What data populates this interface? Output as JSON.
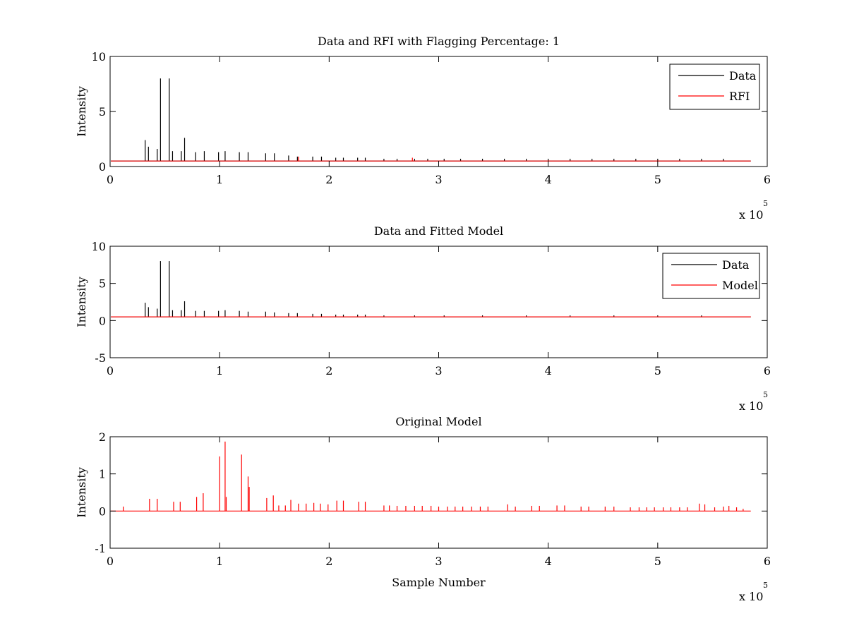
{
  "chart_data": [
    {
      "type": "line",
      "title": "Data and RFI with Flagging Percentage: 1",
      "xlabel": "",
      "ylabel": "Intensity",
      "xlim": [
        0,
        6
      ],
      "ylim": [
        0,
        10
      ],
      "xticks": [
        "0",
        "1",
        "2",
        "3",
        "4",
        "5",
        "6"
      ],
      "yticks": [
        "0",
        "5",
        "10"
      ],
      "x_multiplier": {
        "base": "x 10",
        "exponent": "5"
      },
      "legend_position": "top-right",
      "grid": false,
      "series": [
        {
          "name": "Data",
          "color": "#000000",
          "baseline": 0.5,
          "spikes": [
            {
              "x": 0.32,
              "y": 2.4
            },
            {
              "x": 0.35,
              "y": 1.8
            },
            {
              "x": 0.43,
              "y": 1.6
            },
            {
              "x": 0.46,
              "y": 8.0
            },
            {
              "x": 0.54,
              "y": 8.0
            },
            {
              "x": 0.57,
              "y": 1.4
            },
            {
              "x": 0.65,
              "y": 1.4
            },
            {
              "x": 0.68,
              "y": 2.6
            },
            {
              "x": 0.78,
              "y": 1.3
            },
            {
              "x": 0.86,
              "y": 1.4
            },
            {
              "x": 0.99,
              "y": 1.3
            },
            {
              "x": 1.05,
              "y": 1.4
            },
            {
              "x": 1.18,
              "y": 1.3
            },
            {
              "x": 1.26,
              "y": 1.3
            },
            {
              "x": 1.42,
              "y": 1.2
            },
            {
              "x": 1.5,
              "y": 1.2
            },
            {
              "x": 1.63,
              "y": 1.0
            },
            {
              "x": 1.71,
              "y": 0.9
            },
            {
              "x": 1.85,
              "y": 0.9
            },
            {
              "x": 1.93,
              "y": 0.9
            },
            {
              "x": 2.06,
              "y": 0.8
            },
            {
              "x": 2.13,
              "y": 0.8
            },
            {
              "x": 2.26,
              "y": 0.8
            },
            {
              "x": 2.33,
              "y": 0.8
            },
            {
              "x": 2.5,
              "y": 0.7
            },
            {
              "x": 2.62,
              "y": 0.7
            },
            {
              "x": 2.78,
              "y": 0.7
            },
            {
              "x": 2.9,
              "y": 0.7
            },
            {
              "x": 3.05,
              "y": 0.7
            },
            {
              "x": 3.2,
              "y": 0.7
            },
            {
              "x": 3.4,
              "y": 0.7
            },
            {
              "x": 3.6,
              "y": 0.7
            },
            {
              "x": 3.8,
              "y": 0.7
            },
            {
              "x": 4.0,
              "y": 0.7
            },
            {
              "x": 4.2,
              "y": 0.7
            },
            {
              "x": 4.4,
              "y": 0.7
            },
            {
              "x": 4.6,
              "y": 0.7
            },
            {
              "x": 4.8,
              "y": 0.7
            },
            {
              "x": 5.0,
              "y": 0.7
            },
            {
              "x": 5.2,
              "y": 0.7
            },
            {
              "x": 5.4,
              "y": 0.7
            },
            {
              "x": 5.6,
              "y": 0.7
            }
          ]
        },
        {
          "name": "RFI",
          "color": "#ff0000",
          "baseline": 0.5,
          "spikes": [
            {
              "x": 1.72,
              "y": 0.9
            },
            {
              "x": 2.76,
              "y": 0.8
            }
          ]
        }
      ]
    },
    {
      "type": "line",
      "title": "Data and Fitted Model",
      "xlabel": "",
      "ylabel": "Intensity",
      "xlim": [
        0,
        6
      ],
      "ylim": [
        -5,
        10
      ],
      "xticks": [
        "0",
        "1",
        "2",
        "3",
        "4",
        "5",
        "6"
      ],
      "yticks": [
        "-5",
        "0",
        "5",
        "10"
      ],
      "x_multiplier": {
        "base": "x 10",
        "exponent": "5"
      },
      "legend_position": "top-right",
      "grid": false,
      "series": [
        {
          "name": "Data",
          "color": "#000000",
          "baseline": 0.5,
          "spikes": [
            {
              "x": 0.32,
              "y": 2.4
            },
            {
              "x": 0.35,
              "y": 1.8
            },
            {
              "x": 0.43,
              "y": 1.6
            },
            {
              "x": 0.46,
              "y": 8.0
            },
            {
              "x": 0.54,
              "y": 8.0
            },
            {
              "x": 0.57,
              "y": 1.4
            },
            {
              "x": 0.65,
              "y": 1.4
            },
            {
              "x": 0.68,
              "y": 2.6
            },
            {
              "x": 0.78,
              "y": 1.3
            },
            {
              "x": 0.86,
              "y": 1.3
            },
            {
              "x": 0.99,
              "y": 1.3
            },
            {
              "x": 1.05,
              "y": 1.4
            },
            {
              "x": 1.18,
              "y": 1.3
            },
            {
              "x": 1.26,
              "y": 1.2
            },
            {
              "x": 1.42,
              "y": 1.2
            },
            {
              "x": 1.5,
              "y": 1.1
            },
            {
              "x": 1.63,
              "y": 1.0
            },
            {
              "x": 1.71,
              "y": 1.0
            },
            {
              "x": 1.85,
              "y": 0.9
            },
            {
              "x": 1.93,
              "y": 0.9
            },
            {
              "x": 2.06,
              "y": 0.8
            },
            {
              "x": 2.13,
              "y": 0.8
            },
            {
              "x": 2.26,
              "y": 0.8
            },
            {
              "x": 2.33,
              "y": 0.8
            },
            {
              "x": 2.5,
              "y": 0.7
            },
            {
              "x": 2.78,
              "y": 0.7
            },
            {
              "x": 3.05,
              "y": 0.7
            },
            {
              "x": 3.4,
              "y": 0.7
            },
            {
              "x": 3.8,
              "y": 0.7
            },
            {
              "x": 4.2,
              "y": 0.7
            },
            {
              "x": 4.6,
              "y": 0.7
            },
            {
              "x": 5.0,
              "y": 0.7
            },
            {
              "x": 5.4,
              "y": 0.7
            }
          ]
        },
        {
          "name": "Model",
          "color": "#ff0000",
          "baseline": 0.5,
          "spikes": []
        }
      ]
    },
    {
      "type": "line",
      "title": "Original Model",
      "xlabel": "Sample Number",
      "ylabel": "Intensity",
      "xlim": [
        0,
        6
      ],
      "ylim": [
        -1,
        2
      ],
      "xticks": [
        "0",
        "1",
        "2",
        "3",
        "4",
        "5",
        "6"
      ],
      "yticks": [
        "-1",
        "0",
        "1",
        "2"
      ],
      "x_multiplier": {
        "base": "x 10",
        "exponent": "5"
      },
      "grid": false,
      "series": [
        {
          "color": "#ff0000",
          "baseline": 0,
          "spikes": [
            {
              "x": 0.12,
              "y": 0.12
            },
            {
              "x": 0.36,
              "y": 0.33
            },
            {
              "x": 0.43,
              "y": 0.33
            },
            {
              "x": 0.58,
              "y": 0.25
            },
            {
              "x": 0.64,
              "y": 0.25
            },
            {
              "x": 0.79,
              "y": 0.38
            },
            {
              "x": 0.85,
              "y": 0.48
            },
            {
              "x": 1.0,
              "y": 1.47
            },
            {
              "x": 1.05,
              "y": 1.87
            },
            {
              "x": 1.06,
              "y": 0.38
            },
            {
              "x": 1.2,
              "y": 1.52
            },
            {
              "x": 1.26,
              "y": 0.93
            },
            {
              "x": 1.27,
              "y": 0.65
            },
            {
              "x": 1.43,
              "y": 0.35
            },
            {
              "x": 1.49,
              "y": 0.42
            },
            {
              "x": 1.54,
              "y": 0.15
            },
            {
              "x": 1.6,
              "y": 0.15
            },
            {
              "x": 1.65,
              "y": 0.3
            },
            {
              "x": 1.72,
              "y": 0.2
            },
            {
              "x": 1.79,
              "y": 0.2
            },
            {
              "x": 1.86,
              "y": 0.22
            },
            {
              "x": 1.92,
              "y": 0.2
            },
            {
              "x": 1.99,
              "y": 0.18
            },
            {
              "x": 2.07,
              "y": 0.28
            },
            {
              "x": 2.13,
              "y": 0.28
            },
            {
              "x": 2.27,
              "y": 0.25
            },
            {
              "x": 2.33,
              "y": 0.25
            },
            {
              "x": 2.5,
              "y": 0.15
            },
            {
              "x": 2.55,
              "y": 0.15
            },
            {
              "x": 2.62,
              "y": 0.14
            },
            {
              "x": 2.7,
              "y": 0.14
            },
            {
              "x": 2.78,
              "y": 0.14
            },
            {
              "x": 2.85,
              "y": 0.14
            },
            {
              "x": 2.93,
              "y": 0.14
            },
            {
              "x": 3.0,
              "y": 0.12
            },
            {
              "x": 3.08,
              "y": 0.12
            },
            {
              "x": 3.15,
              "y": 0.12
            },
            {
              "x": 3.22,
              "y": 0.12
            },
            {
              "x": 3.3,
              "y": 0.12
            },
            {
              "x": 3.38,
              "y": 0.12
            },
            {
              "x": 3.45,
              "y": 0.12
            },
            {
              "x": 3.63,
              "y": 0.18
            },
            {
              "x": 3.7,
              "y": 0.12
            },
            {
              "x": 3.85,
              "y": 0.14
            },
            {
              "x": 3.92,
              "y": 0.14
            },
            {
              "x": 4.08,
              "y": 0.15
            },
            {
              "x": 4.15,
              "y": 0.15
            },
            {
              "x": 4.3,
              "y": 0.12
            },
            {
              "x": 4.37,
              "y": 0.12
            },
            {
              "x": 4.52,
              "y": 0.12
            },
            {
              "x": 4.6,
              "y": 0.12
            },
            {
              "x": 4.75,
              "y": 0.1
            },
            {
              "x": 4.83,
              "y": 0.1
            },
            {
              "x": 4.9,
              "y": 0.1
            },
            {
              "x": 4.97,
              "y": 0.1
            },
            {
              "x": 5.05,
              "y": 0.1
            },
            {
              "x": 5.12,
              "y": 0.1
            },
            {
              "x": 5.2,
              "y": 0.1
            },
            {
              "x": 5.27,
              "y": 0.1
            },
            {
              "x": 5.38,
              "y": 0.2
            },
            {
              "x": 5.43,
              "y": 0.18
            },
            {
              "x": 5.52,
              "y": 0.1
            },
            {
              "x": 5.6,
              "y": 0.12
            },
            {
              "x": 5.65,
              "y": 0.14
            },
            {
              "x": 5.72,
              "y": 0.1
            },
            {
              "x": 5.78,
              "y": 0.06
            }
          ]
        }
      ]
    }
  ]
}
